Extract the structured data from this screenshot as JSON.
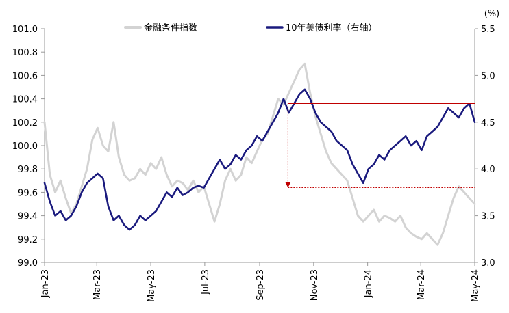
{
  "chart_data": {
    "type": "line",
    "title": "",
    "x_tick_labels": [
      "Jan-23",
      "Mar-23",
      "May-23",
      "Jul-23",
      "Sep-23",
      "Nov-23",
      "Jan-24",
      "Mar-24",
      "May-24"
    ],
    "x_tick_days": [
      0,
      59,
      120,
      181,
      243,
      304,
      365,
      425,
      486
    ],
    "left_axis": {
      "range": [
        99.0,
        101.0
      ],
      "ticks": [
        "99.0",
        "99.2",
        "99.4",
        "99.6",
        "99.8",
        "100.0",
        "100.2",
        "100.4",
        "100.6",
        "100.8",
        "101.0"
      ]
    },
    "right_axis": {
      "unit": "(%)",
      "range": [
        3.0,
        5.5
      ],
      "ticks": [
        "3.0",
        "3.5",
        "4.0",
        "4.5",
        "5.0",
        "5.5"
      ]
    },
    "legend_position": "top",
    "grid": false,
    "series": [
      {
        "name": "金融条件指数",
        "axis": "left",
        "color": "#d3d3d3",
        "points": [
          [
            0,
            100.2
          ],
          [
            6,
            99.75
          ],
          [
            12,
            99.6
          ],
          [
            18,
            99.7
          ],
          [
            24,
            99.55
          ],
          [
            30,
            99.42
          ],
          [
            36,
            99.5
          ],
          [
            42,
            99.65
          ],
          [
            48,
            99.8
          ],
          [
            54,
            100.05
          ],
          [
            60,
            100.15
          ],
          [
            66,
            100.0
          ],
          [
            72,
            99.95
          ],
          [
            78,
            100.2
          ],
          [
            84,
            99.9
          ],
          [
            90,
            99.75
          ],
          [
            96,
            99.7
          ],
          [
            102,
            99.72
          ],
          [
            108,
            99.8
          ],
          [
            114,
            99.75
          ],
          [
            120,
            99.85
          ],
          [
            126,
            99.8
          ],
          [
            132,
            99.9
          ],
          [
            138,
            99.75
          ],
          [
            144,
            99.65
          ],
          [
            150,
            99.7
          ],
          [
            156,
            99.68
          ],
          [
            162,
            99.62
          ],
          [
            168,
            99.7
          ],
          [
            174,
            99.6
          ],
          [
            180,
            99.65
          ],
          [
            186,
            99.5
          ],
          [
            192,
            99.35
          ],
          [
            198,
            99.5
          ],
          [
            204,
            99.7
          ],
          [
            210,
            99.8
          ],
          [
            216,
            99.7
          ],
          [
            222,
            99.75
          ],
          [
            228,
            99.9
          ],
          [
            234,
            99.85
          ],
          [
            240,
            99.95
          ],
          [
            246,
            100.05
          ],
          [
            252,
            100.1
          ],
          [
            258,
            100.25
          ],
          [
            264,
            100.4
          ],
          [
            270,
            100.35
          ],
          [
            276,
            100.45
          ],
          [
            282,
            100.55
          ],
          [
            288,
            100.65
          ],
          [
            294,
            100.7
          ],
          [
            300,
            100.45
          ],
          [
            306,
            100.25
          ],
          [
            312,
            100.1
          ],
          [
            318,
            99.95
          ],
          [
            324,
            99.85
          ],
          [
            330,
            99.8
          ],
          [
            336,
            99.75
          ],
          [
            342,
            99.7
          ],
          [
            348,
            99.55
          ],
          [
            354,
            99.4
          ],
          [
            360,
            99.35
          ],
          [
            366,
            99.4
          ],
          [
            372,
            99.45
          ],
          [
            378,
            99.35
          ],
          [
            384,
            99.4
          ],
          [
            390,
            99.38
          ],
          [
            396,
            99.35
          ],
          [
            402,
            99.4
          ],
          [
            408,
            99.3
          ],
          [
            414,
            99.25
          ],
          [
            420,
            99.22
          ],
          [
            426,
            99.2
          ],
          [
            432,
            99.25
          ],
          [
            438,
            99.2
          ],
          [
            444,
            99.15
          ],
          [
            450,
            99.25
          ],
          [
            456,
            99.4
          ],
          [
            462,
            99.55
          ],
          [
            468,
            99.65
          ],
          [
            474,
            99.6
          ],
          [
            480,
            99.55
          ],
          [
            486,
            99.5
          ]
        ]
      },
      {
        "name": "10年美债利率（右轴）",
        "axis": "right",
        "color": "#1a1a7e",
        "points": [
          [
            0,
            3.85
          ],
          [
            6,
            3.65
          ],
          [
            12,
            3.5
          ],
          [
            18,
            3.55
          ],
          [
            24,
            3.45
          ],
          [
            30,
            3.5
          ],
          [
            36,
            3.6
          ],
          [
            42,
            3.75
          ],
          [
            48,
            3.85
          ],
          [
            54,
            3.9
          ],
          [
            60,
            3.95
          ],
          [
            66,
            3.9
          ],
          [
            72,
            3.6
          ],
          [
            78,
            3.45
          ],
          [
            84,
            3.5
          ],
          [
            90,
            3.4
          ],
          [
            96,
            3.35
          ],
          [
            102,
            3.4
          ],
          [
            108,
            3.5
          ],
          [
            114,
            3.45
          ],
          [
            120,
            3.5
          ],
          [
            126,
            3.55
          ],
          [
            132,
            3.65
          ],
          [
            138,
            3.75
          ],
          [
            144,
            3.7
          ],
          [
            150,
            3.8
          ],
          [
            156,
            3.72
          ],
          [
            162,
            3.75
          ],
          [
            168,
            3.8
          ],
          [
            174,
            3.82
          ],
          [
            180,
            3.8
          ],
          [
            186,
            3.9
          ],
          [
            192,
            4.0
          ],
          [
            198,
            4.1
          ],
          [
            204,
            4.0
          ],
          [
            210,
            4.05
          ],
          [
            216,
            4.15
          ],
          [
            222,
            4.1
          ],
          [
            228,
            4.2
          ],
          [
            234,
            4.25
          ],
          [
            240,
            4.35
          ],
          [
            246,
            4.3
          ],
          [
            252,
            4.4
          ],
          [
            258,
            4.5
          ],
          [
            264,
            4.6
          ],
          [
            270,
            4.75
          ],
          [
            276,
            4.6
          ],
          [
            282,
            4.7
          ],
          [
            288,
            4.8
          ],
          [
            294,
            4.85
          ],
          [
            300,
            4.75
          ],
          [
            306,
            4.6
          ],
          [
            312,
            4.5
          ],
          [
            318,
            4.45
          ],
          [
            324,
            4.4
          ],
          [
            330,
            4.3
          ],
          [
            336,
            4.25
          ],
          [
            342,
            4.2
          ],
          [
            348,
            4.05
          ],
          [
            354,
            3.95
          ],
          [
            360,
            3.85
          ],
          [
            366,
            4.0
          ],
          [
            372,
            4.05
          ],
          [
            378,
            4.15
          ],
          [
            384,
            4.1
          ],
          [
            390,
            4.2
          ],
          [
            396,
            4.25
          ],
          [
            402,
            4.3
          ],
          [
            408,
            4.35
          ],
          [
            414,
            4.25
          ],
          [
            420,
            4.3
          ],
          [
            426,
            4.2
          ],
          [
            432,
            4.35
          ],
          [
            438,
            4.4
          ],
          [
            444,
            4.45
          ],
          [
            450,
            4.55
          ],
          [
            456,
            4.65
          ],
          [
            462,
            4.6
          ],
          [
            468,
            4.55
          ],
          [
            474,
            4.65
          ],
          [
            480,
            4.7
          ],
          [
            486,
            4.5
          ]
        ]
      }
    ],
    "annotations": [
      {
        "type": "hline",
        "axis": "right",
        "value": 4.7,
        "x_range": [
          275,
          486
        ],
        "style": "solid",
        "color": "#c00000"
      },
      {
        "type": "hline",
        "axis": "right",
        "value": 3.8,
        "x_range": [
          275,
          486
        ],
        "style": "dotted",
        "color": "#c00000"
      },
      {
        "type": "vline-arrow",
        "x": 275,
        "from": 4.7,
        "to": 3.8,
        "style": "dotted",
        "color": "#c00000"
      }
    ]
  }
}
